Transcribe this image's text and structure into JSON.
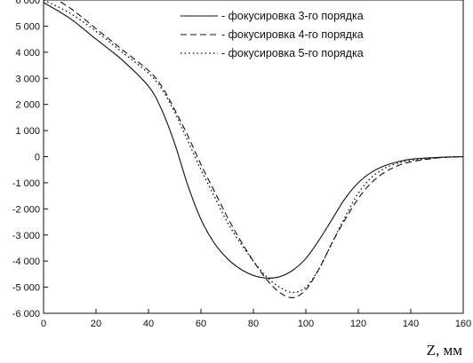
{
  "chart_data": {
    "type": "line",
    "title": "",
    "xlabel": "Z,  мм",
    "ylabel": "",
    "xlim": [
      0,
      160
    ],
    "ylim": [
      -6000,
      6000
    ],
    "x_ticks": [
      0,
      20,
      40,
      60,
      80,
      100,
      120,
      140,
      160
    ],
    "y_ticks": [
      6000,
      5000,
      4000,
      3000,
      2000,
      1000,
      0,
      -1000,
      -2000,
      -3000,
      -4000,
      -5000,
      -6000
    ],
    "x_tick_labels": [
      "0",
      "20",
      "40",
      "60",
      "80",
      "100",
      "120",
      "140",
      "160"
    ],
    "y_tick_labels": [
      "6 000",
      "5 000",
      "4 000",
      "3 000",
      "2 000",
      "1 000",
      "0",
      "-1 000",
      "-2 000",
      "-3 000",
      "-4 000",
      "-5 000",
      "-6 000"
    ],
    "grid": false,
    "legend_position": "top-right",
    "series": [
      {
        "name": "- фокусировка 3-го порядка",
        "style": "solid",
        "x": [
          0,
          10,
          20,
          30,
          40,
          45,
          50,
          55,
          60,
          65,
          70,
          75,
          80,
          85,
          90,
          95,
          100,
          105,
          110,
          115,
          120,
          125,
          130,
          135,
          140,
          150,
          160
        ],
        "y": [
          5900,
          5300,
          4500,
          3700,
          2700,
          1800,
          500,
          -1100,
          -2400,
          -3300,
          -3900,
          -4300,
          -4550,
          -4650,
          -4600,
          -4350,
          -3900,
          -3200,
          -2400,
          -1600,
          -1000,
          -600,
          -350,
          -200,
          -100,
          -30,
          0
        ]
      },
      {
        "name": "- фокусировка 4-го порядка",
        "style": "dashed",
        "x": [
          0,
          10,
          20,
          30,
          40,
          45,
          50,
          55,
          60,
          65,
          70,
          75,
          80,
          85,
          90,
          95,
          100,
          105,
          110,
          115,
          120,
          125,
          130,
          135,
          140,
          150,
          160
        ],
        "y": [
          6300,
          5700,
          4900,
          4100,
          3300,
          2700,
          1800,
          800,
          -300,
          -1300,
          -2300,
          -3200,
          -4000,
          -4700,
          -5200,
          -5400,
          -5100,
          -4300,
          -3300,
          -2400,
          -1600,
          -1000,
          -600,
          -350,
          -200,
          -50,
          0
        ]
      },
      {
        "name": "- фокусировка 5-го порядка",
        "style": "dotted",
        "x": [
          0,
          10,
          20,
          30,
          40,
          45,
          50,
          55,
          60,
          65,
          70,
          75,
          80,
          85,
          90,
          95,
          100,
          105,
          110,
          115,
          120,
          125,
          130,
          135,
          140,
          150,
          160
        ],
        "y": [
          6000,
          5500,
          4800,
          4000,
          3200,
          2600,
          1700,
          600,
          -500,
          -1500,
          -2500,
          -3300,
          -4000,
          -4600,
          -5000,
          -5200,
          -5000,
          -4300,
          -3300,
          -2300,
          -1400,
          -800,
          -450,
          -250,
          -150,
          -40,
          0
        ]
      }
    ]
  }
}
